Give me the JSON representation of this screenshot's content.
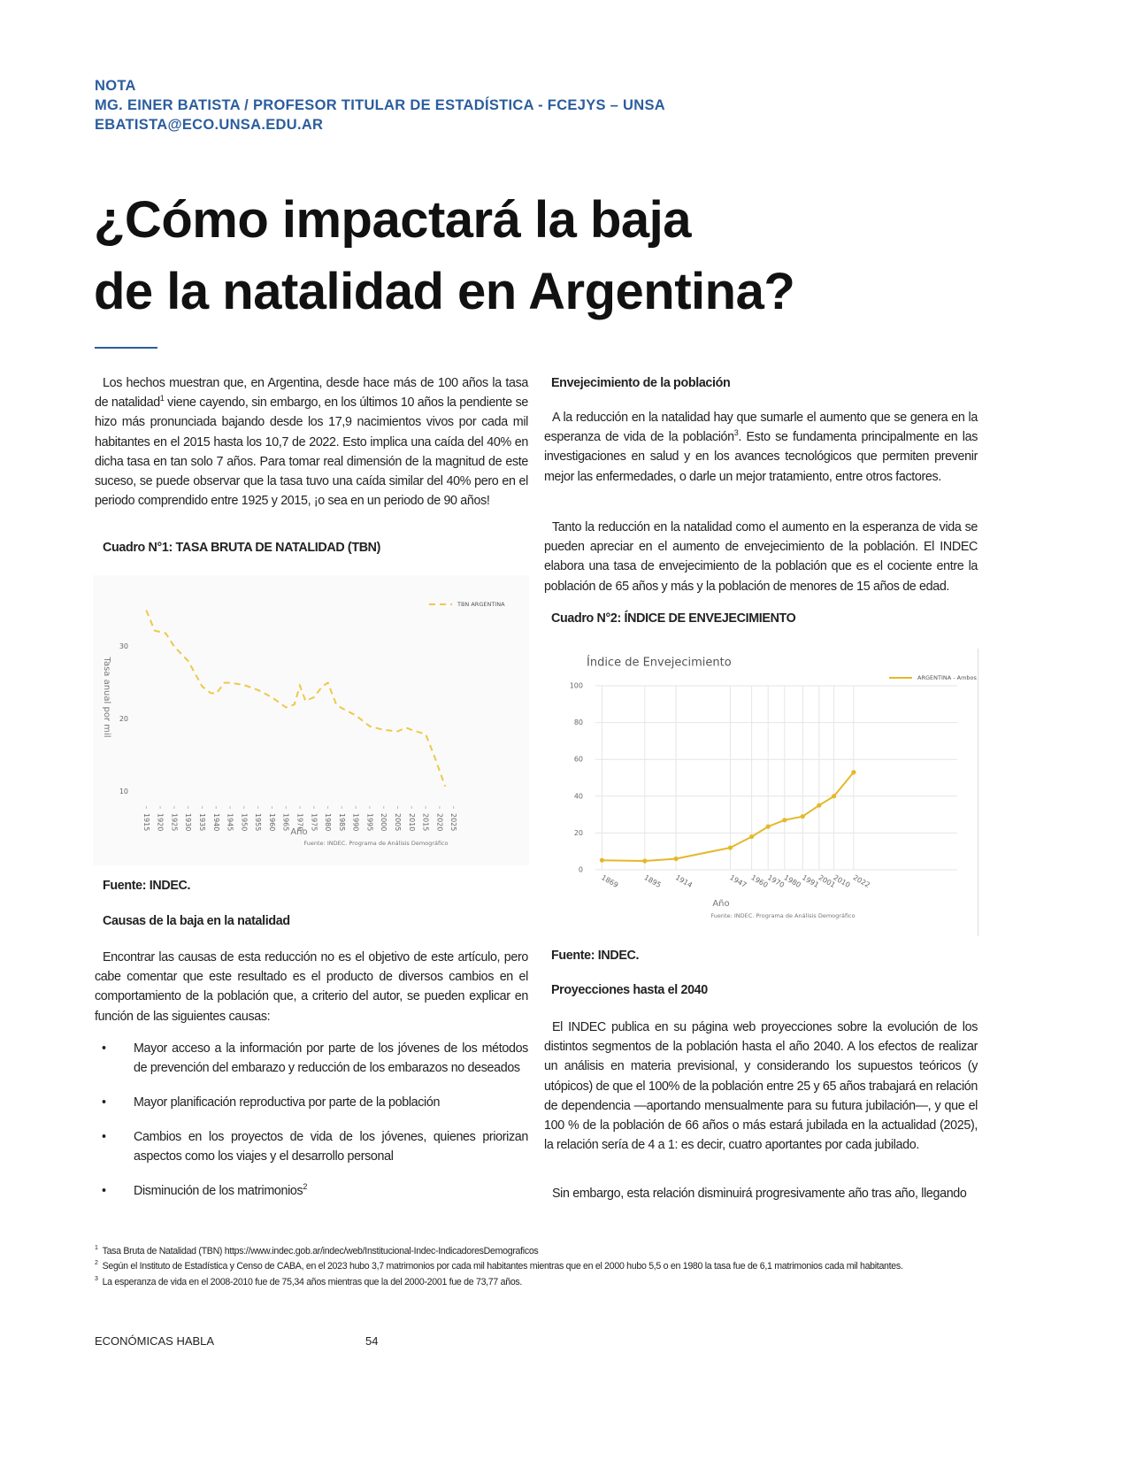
{
  "header": {
    "section": "NOTA",
    "author": "MG. EINER BATISTA / PROFESOR TITULAR DE ESTADÍSTICA - FCEJYS – UNSA",
    "email": "EBATISTA@ECO.UNSA.EDU.AR"
  },
  "title": [
    "¿Cómo impactará la baja",
    "de la natalidad en Argentina?"
  ],
  "body": {
    "p1": [
      "Los hechos muestran que, en Argentina, desde hace más de 100 años la tasa de natalidad",
      "1",
      " viene cayendo, sin embargo, en los últimos 10 años la pendiente se hizo más pronunciada bajando desde los 17,9 nacimientos vivos por cada mil habitantes en el 2015 hasta los 10,7 de 2022. Esto implica una caída del 40% en dicha tasa en tan solo 7 años. Para tomar real dimensión de la magnitud de este suceso, se puede observar que la tasa tuvo una caída similar del 40% pero en el periodo comprendido entre 1925 y 2015, ¡o sea en un periodo de 90 años!"
    ],
    "cuadro1": "Cuadro N°1: TASA BRUTA DE NATALIDAD (TBN)",
    "fuente1": "Fuente: INDEC.",
    "h_causas": "Causas de la baja en la natalidad",
    "p2": "Encontrar las causas de esta reducción no es el objetivo de este artículo, pero cabe comentar que este resultado es el producto de diversos cambios en el comportamiento de la población que, a criterio del autor, se pueden explicar en función de las siguientes causas:",
    "bullets": [
      "Mayor acceso a la información por parte de los jóvenes de los métodos de prevención del embarazo y reducción de los embarazos no deseados",
      "Mayor planificación reproductiva por parte de la población",
      "Cambios en los proyectos de vida de los jóvenes, quienes priorizan aspectos como los viajes y el desarrollo personal",
      [
        "Disminución de los matrimonios",
        "2"
      ]
    ],
    "h_env": "Envejecimiento de la población",
    "p3": [
      "A la reducción en la natalidad hay que sumarle el aumento que se genera en la esperanza de vida de la población",
      "3",
      ". Esto se fundamenta principalmente en las investigaciones en salud y en los avances tecnológicos que permiten prevenir mejor las enfermedades, o darle un mejor tratamiento, entre otros factores."
    ],
    "p4": "Tanto la reducción en la natalidad como el aumento en la esperanza de vida se pueden apreciar en el aumento de envejecimiento de la población. El INDEC elabora una tasa de envejecimiento de la población que es el cociente entre la población de 65 años y más y la población de menores de 15 años de edad.",
    "cuadro2": "Cuadro N°2: ÍNDICE DE ENVEJECIMIENTO",
    "fuente2": "Fuente: INDEC.",
    "h_proy": "Proyecciones hasta el 2040",
    "p5": "El INDEC publica en su página web proyecciones sobre la evolución de los distintos segmentos de la población hasta el año 2040. A los efectos de realizar un análisis en materia previsional, y considerando los supuestos teóricos (y utópicos) de que el 100% de la población entre 25 y 65 años trabajará en relación de dependencia —aportando mensualmente para su futura jubilación—, y que el 100 % de la población de 66 años o más estará jubilada en la actualidad (2025), la relación sería de 4 a 1: es decir, cuatro aportantes por cada jubilado.",
    "p6": "Sin embargo, esta relación disminuirá progresivamente año tras año, llegando"
  },
  "footnotes": [
    [
      "1",
      "Tasa Bruta de Natalidad (TBN) https://www.indec.gob.ar/indec/web/Institucional-Indec-IndicadoresDemograficos"
    ],
    [
      "2",
      "Según el Instituto de Estadística y Censo de CABA, en el 2023 hubo 3,7 matrimonios por cada mil habitantes mientras que en el 2000 hubo 5,5 o en 1980 la tasa fue de 6,1 matrimonios cada mil habitantes."
    ],
    [
      "3",
      "La esperanza de vida en el 2008-2010 fue de 75,34 años mientras que la del 2000-2001 fue de 73,77 años."
    ]
  ],
  "footer": {
    "publication": "ECONÓMICAS HABLA",
    "page": "54"
  },
  "chart_data": [
    {
      "type": "line",
      "line_style": "dashed",
      "markers": false,
      "grid": false,
      "y_label": "Tasa anual por mil",
      "x_label": "Año",
      "source": "Fuente: INDEC. Programa de Análisis Demográfico",
      "x": [
        1915,
        1918,
        1920,
        1922,
        1925,
        1930,
        1935,
        1938,
        1940,
        1943,
        1945,
        1950,
        1955,
        1960,
        1965,
        1968,
        1970,
        1972,
        1975,
        1978,
        1980,
        1983,
        1985,
        1990,
        1995,
        2000,
        2005,
        2008,
        2010,
        2015,
        2018,
        2022
      ],
      "series": [
        {
          "name": "TBN ARGENTINA",
          "color": "#ecc94b",
          "values": [
            35.0,
            32.2,
            32.0,
            31.8,
            30.0,
            28.0,
            24.5,
            23.6,
            23.5,
            25.0,
            25.0,
            24.7,
            24.0,
            23.0,
            21.6,
            22.0,
            24.6,
            22.5,
            23.0,
            24.5,
            25.0,
            22.0,
            21.5,
            20.5,
            19.0,
            18.5,
            18.3,
            18.8,
            18.5,
            17.9,
            15.0,
            10.7
          ]
        }
      ],
      "xlim": [
        1913,
        2027
      ],
      "ylim": [
        8,
        38
      ],
      "xticks": [
        1915,
        1920,
        1925,
        1930,
        1935,
        1940,
        1945,
        1950,
        1955,
        1960,
        1965,
        1970,
        1975,
        1980,
        1985,
        1990,
        1995,
        2000,
        2005,
        2010,
        2015,
        2020,
        2025
      ],
      "yticks": [
        10,
        20,
        30
      ]
    },
    {
      "type": "line",
      "line_style": "solid",
      "markers": true,
      "grid": true,
      "title": "Índice de Envejecimiento",
      "x_label": "Año",
      "source": "Fuente: INDEC. Programa de Análisis Demográfico",
      "x": [
        1869,
        1895,
        1914,
        1947,
        1960,
        1970,
        1980,
        1991,
        2001,
        2010,
        2022
      ],
      "series": [
        {
          "name": "ARGENTINA - Ambos",
          "color": "#e5b82a",
          "values": [
            5.2,
            4.8,
            6.0,
            12.0,
            18.0,
            23.5,
            27.0,
            29.0,
            35.0,
            40.0,
            53.0
          ]
        }
      ],
      "xlim": [
        1865,
        2085
      ],
      "ylim": [
        0,
        100
      ],
      "xticks": [
        1869,
        1895,
        1914,
        1947,
        1960,
        1970,
        1980,
        1991,
        2001,
        2010,
        2022
      ],
      "yticks": [
        0,
        20,
        40,
        60,
        80,
        100
      ]
    }
  ]
}
